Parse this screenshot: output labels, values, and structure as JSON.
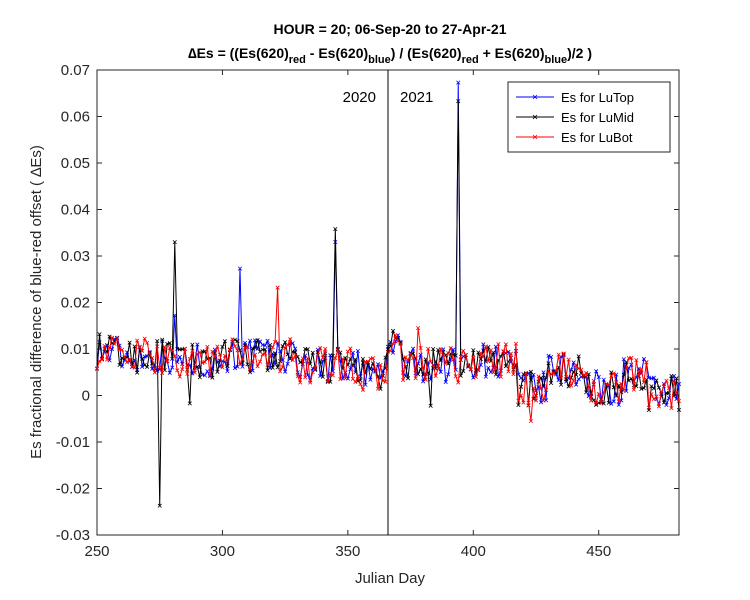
{
  "chart_data": {
    "type": "line",
    "title_line1": "HOUR = 20; 06-Sep-20 to 27-Apr-21",
    "title_line2": {
      "p1": "∆Es = ((Es(620)",
      "s1": "red",
      "p2": " - Es(620)",
      "s2": "blue",
      "p3": ") / (Es(620)",
      "s3": "red",
      "p4": " + Es(620)",
      "s4": "blue",
      "p5": ")/2  )"
    },
    "xlabel": "Julian Day",
    "ylabel": "Es fractional difference of blue-red offset (   ∆Es)",
    "xlim": [
      250,
      482
    ],
    "ylim": [
      -0.03,
      0.07
    ],
    "xticks": [
      250,
      300,
      350,
      400,
      450
    ],
    "yticks": [
      -0.03,
      -0.02,
      -0.01,
      0,
      0.01,
      0.02,
      0.03,
      0.04,
      0.05,
      0.06,
      0.07
    ],
    "ytick_labels": [
      "-0.03",
      "-0.02",
      "-0.01",
      "0",
      "0.01",
      "0.02",
      "0.03",
      "0.04",
      "0.05",
      "0.06",
      "0.07"
    ],
    "grid": false,
    "legend_position": "top-right",
    "year_divider": {
      "x": 366,
      "label_left": "2020",
      "label_right": "2021"
    },
    "series": [
      {
        "name": "Es for LuTop",
        "color": "#0000ff",
        "marker": "x"
      },
      {
        "name": "Es for LuMid",
        "color": "#000000",
        "marker": "x"
      },
      {
        "name": "Es for LuBot",
        "color": "#ff0000",
        "marker": "x"
      }
    ],
    "spikes": [
      {
        "series": 1,
        "x": 275,
        "y": -0.0237
      },
      {
        "series": 1,
        "x": 281,
        "y": 0.033
      },
      {
        "series": 0,
        "x": 281,
        "y": 0.0172
      },
      {
        "series": 0,
        "x": 307,
        "y": 0.0273
      },
      {
        "series": 2,
        "x": 322,
        "y": 0.0232
      },
      {
        "series": 1,
        "x": 345,
        "y": 0.0358
      },
      {
        "series": 0,
        "x": 345,
        "y": 0.033
      },
      {
        "series": 2,
        "x": 378,
        "y": 0.0145
      },
      {
        "series": 0,
        "x": 394,
        "y": 0.0673
      },
      {
        "series": 1,
        "x": 394,
        "y": 0.0633
      },
      {
        "series": 2,
        "x": 423,
        "y": -0.0055
      },
      {
        "series": 1,
        "x": 383,
        "y": -0.0022
      },
      {
        "series": 1,
        "x": 287,
        "y": -0.0017
      }
    ]
  }
}
